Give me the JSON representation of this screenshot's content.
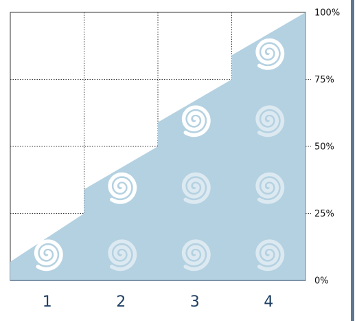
{
  "chart_data": {
    "type": "area",
    "categories": [
      "1",
      "2",
      "3",
      "4"
    ],
    "step_values": [
      25,
      50,
      75,
      100
    ],
    "start_value": 7,
    "spiral_counts": [
      1,
      2,
      3,
      4
    ],
    "y_ticks": [
      {
        "value": 0,
        "label": "0%"
      },
      {
        "value": 25,
        "label": "25%"
      },
      {
        "value": 50,
        "label": "50%"
      },
      {
        "value": 75,
        "label": "75%"
      },
      {
        "value": 100,
        "label": "100%"
      }
    ],
    "ylim": [
      0,
      100
    ],
    "grid": true,
    "colors": {
      "fill": "#b4d1e1",
      "spiral_active": "#ffffff",
      "spiral_faded": "#dce9f1",
      "axis": "#5f7790",
      "grid": "#333333",
      "category_label": "#1f3f63",
      "right_bar": "#5f7790"
    }
  }
}
